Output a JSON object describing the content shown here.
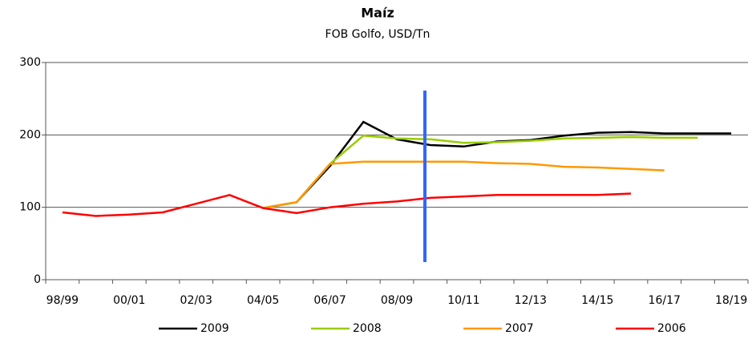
{
  "chart_data": {
    "type": "line",
    "title": "Maíz",
    "subtitle": "FOB Golfo, USD/Tn",
    "categories": [
      "98/99",
      null,
      "00/01",
      null,
      "02/03",
      null,
      "04/05",
      null,
      "06/07",
      null,
      "08/09",
      null,
      "10/11",
      null,
      "12/13",
      null,
      "14/15",
      null,
      "16/17",
      null,
      "18/19"
    ],
    "series": [
      {
        "name": "2009",
        "color": "#000000",
        "values": [
          null,
          null,
          null,
          null,
          null,
          null,
          99,
          107,
          157,
          218,
          194,
          186,
          184,
          191,
          193,
          199,
          203,
          204,
          202,
          202,
          202
        ]
      },
      {
        "name": "2008",
        "color": "#99cc00",
        "values": [
          null,
          null,
          null,
          null,
          null,
          null,
          99,
          107,
          160,
          199,
          195,
          194,
          189,
          190,
          192,
          195,
          196,
          197,
          196,
          196,
          null
        ]
      },
      {
        "name": "2007",
        "color": "#ff9900",
        "values": [
          null,
          null,
          null,
          null,
          null,
          null,
          99,
          107,
          160,
          163,
          163,
          163,
          163,
          161,
          160,
          156,
          155,
          153,
          151,
          null,
          null
        ]
      },
      {
        "name": "2006",
        "color": "#ff0000",
        "values": [
          93,
          88,
          90,
          93,
          105,
          117,
          99,
          92,
          100,
          105,
          108,
          113,
          115,
          117,
          117,
          117,
          117,
          119,
          null,
          null,
          null
        ]
      }
    ],
    "ylim": [
      0,
      300
    ],
    "yticks": [
      0,
      100,
      200,
      300
    ],
    "grid": true,
    "legend": "bottom"
  }
}
